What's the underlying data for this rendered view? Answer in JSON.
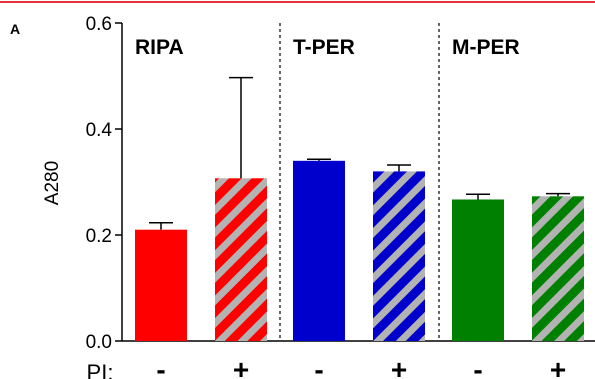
{
  "panel_label": "A",
  "colors": {
    "top_rule": "#e8313a",
    "RIPA": "#ff0000",
    "T-PER": "#0000cc",
    "M-PER": "#008000",
    "hatch_stripe": "#b3b3b3"
  },
  "chart_data": {
    "type": "bar",
    "ylabel": "A280",
    "ylim": [
      0,
      0.6
    ],
    "yticks": [
      "0.0",
      "0.2",
      "0.4",
      "0.6"
    ],
    "x_row_label": "PI:",
    "groups": [
      {
        "name": "RIPA",
        "bars": [
          {
            "pi": "-",
            "value": 0.21,
            "error": 0.013,
            "hatched": false
          },
          {
            "pi": "+",
            "value": 0.307,
            "error": 0.19,
            "hatched": true
          }
        ]
      },
      {
        "name": "T-PER",
        "bars": [
          {
            "pi": "-",
            "value": 0.34,
            "error": 0.003,
            "hatched": false
          },
          {
            "pi": "+",
            "value": 0.32,
            "error": 0.012,
            "hatched": true
          }
        ]
      },
      {
        "name": "M-PER",
        "bars": [
          {
            "pi": "-",
            "value": 0.267,
            "error": 0.01,
            "hatched": false
          },
          {
            "pi": "+",
            "value": 0.273,
            "error": 0.005,
            "hatched": true
          }
        ]
      }
    ],
    "group_separators": "dashed",
    "grid": false
  }
}
